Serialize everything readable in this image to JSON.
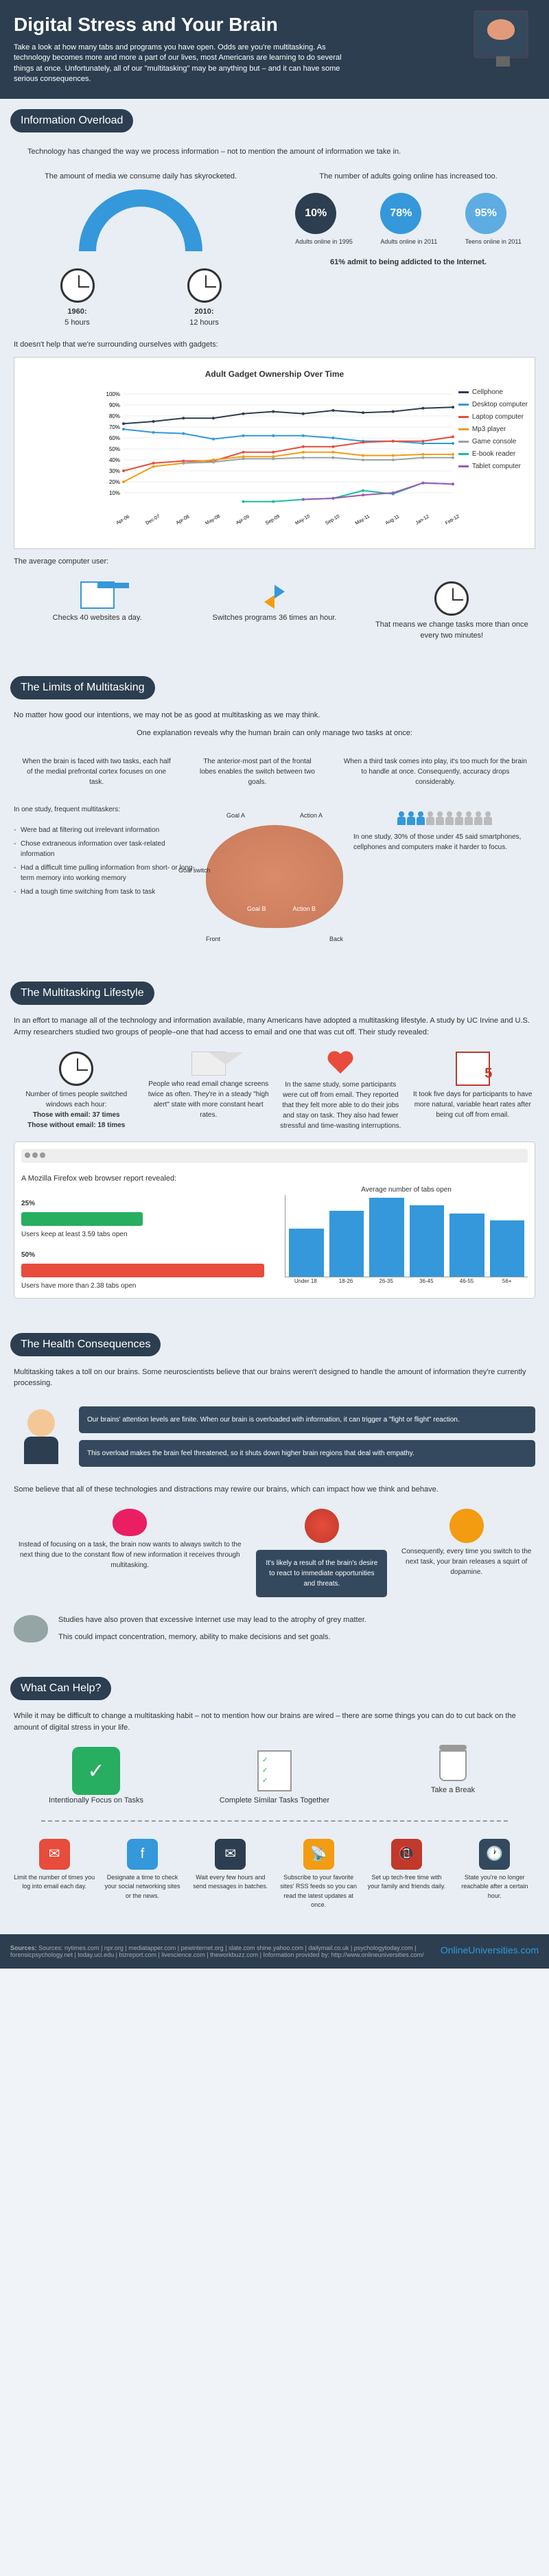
{
  "header": {
    "title": "Digital Stress and Your Brain",
    "intro": "Take a look at how many tabs and programs you have open. Odds are you're multitasking. As technology becomes more and more a part of our lives, most Americans are learning to do several things at once. Unfortunately, all of our \"multitasking\" may be anything but – and it can have some serious consequences."
  },
  "s1": {
    "title": "Information Overload",
    "intro": "Technology has changed the way we process information – not to mention the amount of information we take in.",
    "media_title": "The amount of media we consume daily has skyrocketed.",
    "y1960_label": "1960:",
    "y1960_val": "5 hours",
    "y2010_label": "2010:",
    "y2010_val": "12 hours",
    "online_title": "The number of adults going online has increased too.",
    "stats": [
      {
        "pct": "10%",
        "label": "Adults online in 1995",
        "color": "#2c3e50"
      },
      {
        "pct": "78%",
        "label": "Adults online in 2011",
        "color": "#3498db"
      },
      {
        "pct": "95%",
        "label": "Teens online in 2011",
        "color": "#5dade2"
      }
    ],
    "addict": "61% admit to being addicted to the Internet.",
    "gadget_intro": "It doesn't help that we're surrounding ourselves with gadgets:",
    "chart_title": "Adult Gadget Ownership Over Time",
    "legend": [
      {
        "label": "Cellphone",
        "color": "#2c3e50"
      },
      {
        "label": "Desktop computer",
        "color": "#3498db"
      },
      {
        "label": "Laptop computer",
        "color": "#e74c3c"
      },
      {
        "label": "Mp3 player",
        "color": "#f39c12"
      },
      {
        "label": "Game console",
        "color": "#95a5a6"
      },
      {
        "label": "E-book reader",
        "color": "#1abc9c"
      },
      {
        "label": "Tablet computer",
        "color": "#9b59b6"
      }
    ],
    "x_labels": [
      "Apr-06",
      "Dec-07",
      "Apr-08",
      "May-08",
      "Apr-09",
      "Sep-09",
      "May-10",
      "Sep-10",
      "May-11",
      "Aug-11",
      "Jan-12",
      "Feb-12"
    ],
    "y_ticks": [
      "10%",
      "20%",
      "30%",
      "40%",
      "50%",
      "60%",
      "70%",
      "80%",
      "90%",
      "100%"
    ],
    "cellphone": [
      73,
      75,
      78,
      78,
      82,
      84,
      82,
      85,
      83,
      84,
      87,
      88
    ],
    "desktop": [
      68,
      65,
      64,
      59,
      62,
      62,
      62,
      60,
      57,
      57,
      55,
      55
    ],
    "laptop": [
      30,
      37,
      39,
      39,
      47,
      47,
      52,
      52,
      56,
      57,
      57,
      61
    ],
    "mp3": [
      20,
      34,
      37,
      40,
      43,
      43,
      47,
      47,
      44,
      44,
      45,
      45
    ],
    "console": [
      null,
      null,
      37,
      38,
      41,
      41,
      42,
      42,
      40,
      40,
      42,
      42
    ],
    "ebook": [
      null,
      null,
      null,
      null,
      2,
      2,
      4,
      5,
      12,
      9,
      19,
      18
    ],
    "tablet": [
      null,
      null,
      null,
      null,
      null,
      null,
      4,
      5,
      8,
      10,
      19,
      18
    ],
    "avg_user": "The average computer user:",
    "stat1": "Checks 40 websites a day.",
    "stat2": "Switches programs 36 times an hour.",
    "stat3": "That means we change tasks more than once every two minutes!"
  },
  "s2": {
    "title": "The Limits of Multitasking",
    "intro": "No matter how good our intentions, we may not be as good at multitasking as we may think.",
    "explain": "One explanation reveals why the human brain can only manage two tasks at once:",
    "c1": "When the brain is faced with two tasks, each half of the medial prefrontal cortex focuses on one task.",
    "c2": "The anterior-most part of the frontal lobes enables the switch between two goals.",
    "c3": "When a third task comes into play, it's too much for the brain to handle at once. Consequently, accuracy drops considerably.",
    "brain_labels": {
      "ga": "Goal A",
      "gb": "Goal B",
      "gs": "Goal switch",
      "aa": "Action A",
      "ab": "Action B",
      "front": "Front",
      "back": "Back"
    },
    "study_intro": "In one study, frequent multitaskers:",
    "bullets": [
      "Were bad at filtering out irrelevant information",
      "Chose extraneous information over task-related information",
      "Had a difficult time pulling information from short- or long-term memory into working memory",
      "Had a tough time switching from task to task"
    ],
    "study2": "In one study, 30% of those under 45 said smartphones, cellphones and computers make it harder to focus."
  },
  "s3": {
    "title": "The Multitasking Lifestyle",
    "intro": "In an effort to manage all of the technology and information available, many Americans have adopted a multitasking lifestyle. A study by UC Irvine and U.S. Army researchers studied two groups of people–one that had access to email and one that was cut off. Their study revealed:",
    "c1_title": "Number of times people switched windows each hour:",
    "c1_a": "Those with email: 37 times",
    "c1_b": "Those without email: 18 times",
    "c2": "People who read email change screens twice as often. They're in a steady \"high alert\" state with more constant heart rates.",
    "c3": "In the same study, some participants were cut off from email. They reported that they felt more able to do their jobs and stay on task. They also had fewer stressful and time-wasting interruptions.",
    "c4": "It took five days for participants to have more natural, variable heart rates after being cut off from email.",
    "firefox": "A Mozilla Firefox web browser report revealed:",
    "keep1_pct": "25%",
    "keep1": "Users keep at least 3.59 tabs open",
    "keep2_pct": "50%",
    "keep2": "Users have more than 2.38 tabs open",
    "tabs_title": "Average number of tabs open",
    "tabs_x": [
      "Under 18",
      "18-26",
      "26-35",
      "36-45",
      "46-55",
      "56+"
    ],
    "tabs_y": [
      3.5,
      4.8,
      5.8,
      5.2,
      4.6,
      4.1
    ],
    "tabs_ylim": [
      0,
      6
    ]
  },
  "s4": {
    "title": "The Health Consequences",
    "intro": "Multitasking takes a toll on our brains. Some neuroscientists believe that our brains weren't designed to handle the amount of information they're currently processing.",
    "q1": "Our brains' attention levels are finite. When our brain is overloaded with information, it can trigger a \"fight or flight\" reaction.",
    "q2": "This overload makes the brain feel threatened, so it shuts down higher brain regions that deal with empathy.",
    "rewire": "Some believe that all of these technologies and distractions may rewire our brains, which can impact how we think and behave.",
    "r1": "Instead of focusing on a task, the brain now wants to always switch to the next thing due to the constant flow of new information it receives through multitasking.",
    "r2": "It's likely a result of the brain's desire to react to immediate opportunities and threats.",
    "r3": "Consequently, every time you switch to the next task, your brain releases a squirt of dopamine.",
    "internet1": "Studies have also proven that excessive Internet use may lead to the atrophy of grey matter.",
    "internet2": "This could impact concentration, memory, ability to make decisions and set goals."
  },
  "s5": {
    "title": "What Can Help?",
    "intro": "While it may be difficult to change a multitasking habit – not to mention how our brains are wired – there are some things you can do to cut back on the amount of digital stress in your life.",
    "t1": "Intentionally Focus on Tasks",
    "t2": "Complete Similar Tasks Together",
    "t3": "Take a Break",
    "tips": [
      "Limit the number of times you log into email each day.",
      "Designate a time to check your social networking sites or the news.",
      "Wait every few hours and send messages in batches.",
      "Subscribe to your favorite sites' RSS feeds so you can read the latest updates at once.",
      "Set up tech-free time with your family and friends daily.",
      "State you're no longer reachable after a certain hour."
    ],
    "tip_colors": [
      "#e74c3c",
      "#3498db",
      "#2c3e50",
      "#f39c12",
      "#c0392b",
      "#34495e"
    ],
    "tip_icons": [
      "✉",
      "f",
      "✉",
      "📡",
      "📵",
      "🕐"
    ]
  },
  "footer": {
    "sources": "Sources: nytimes.com | npr.org | mediatapper.com | pewinternet.org | slate.com shine.yahoo.com | dailymail.co.uk | psychologytoday.com | forensicpsychology.net | today.uci.edu | bizreport.com | livescience.com | theworkbuzz.com | Information provided by: http://www.onlineuniversities.com/",
    "logo": "OnlineUniversities.com"
  }
}
